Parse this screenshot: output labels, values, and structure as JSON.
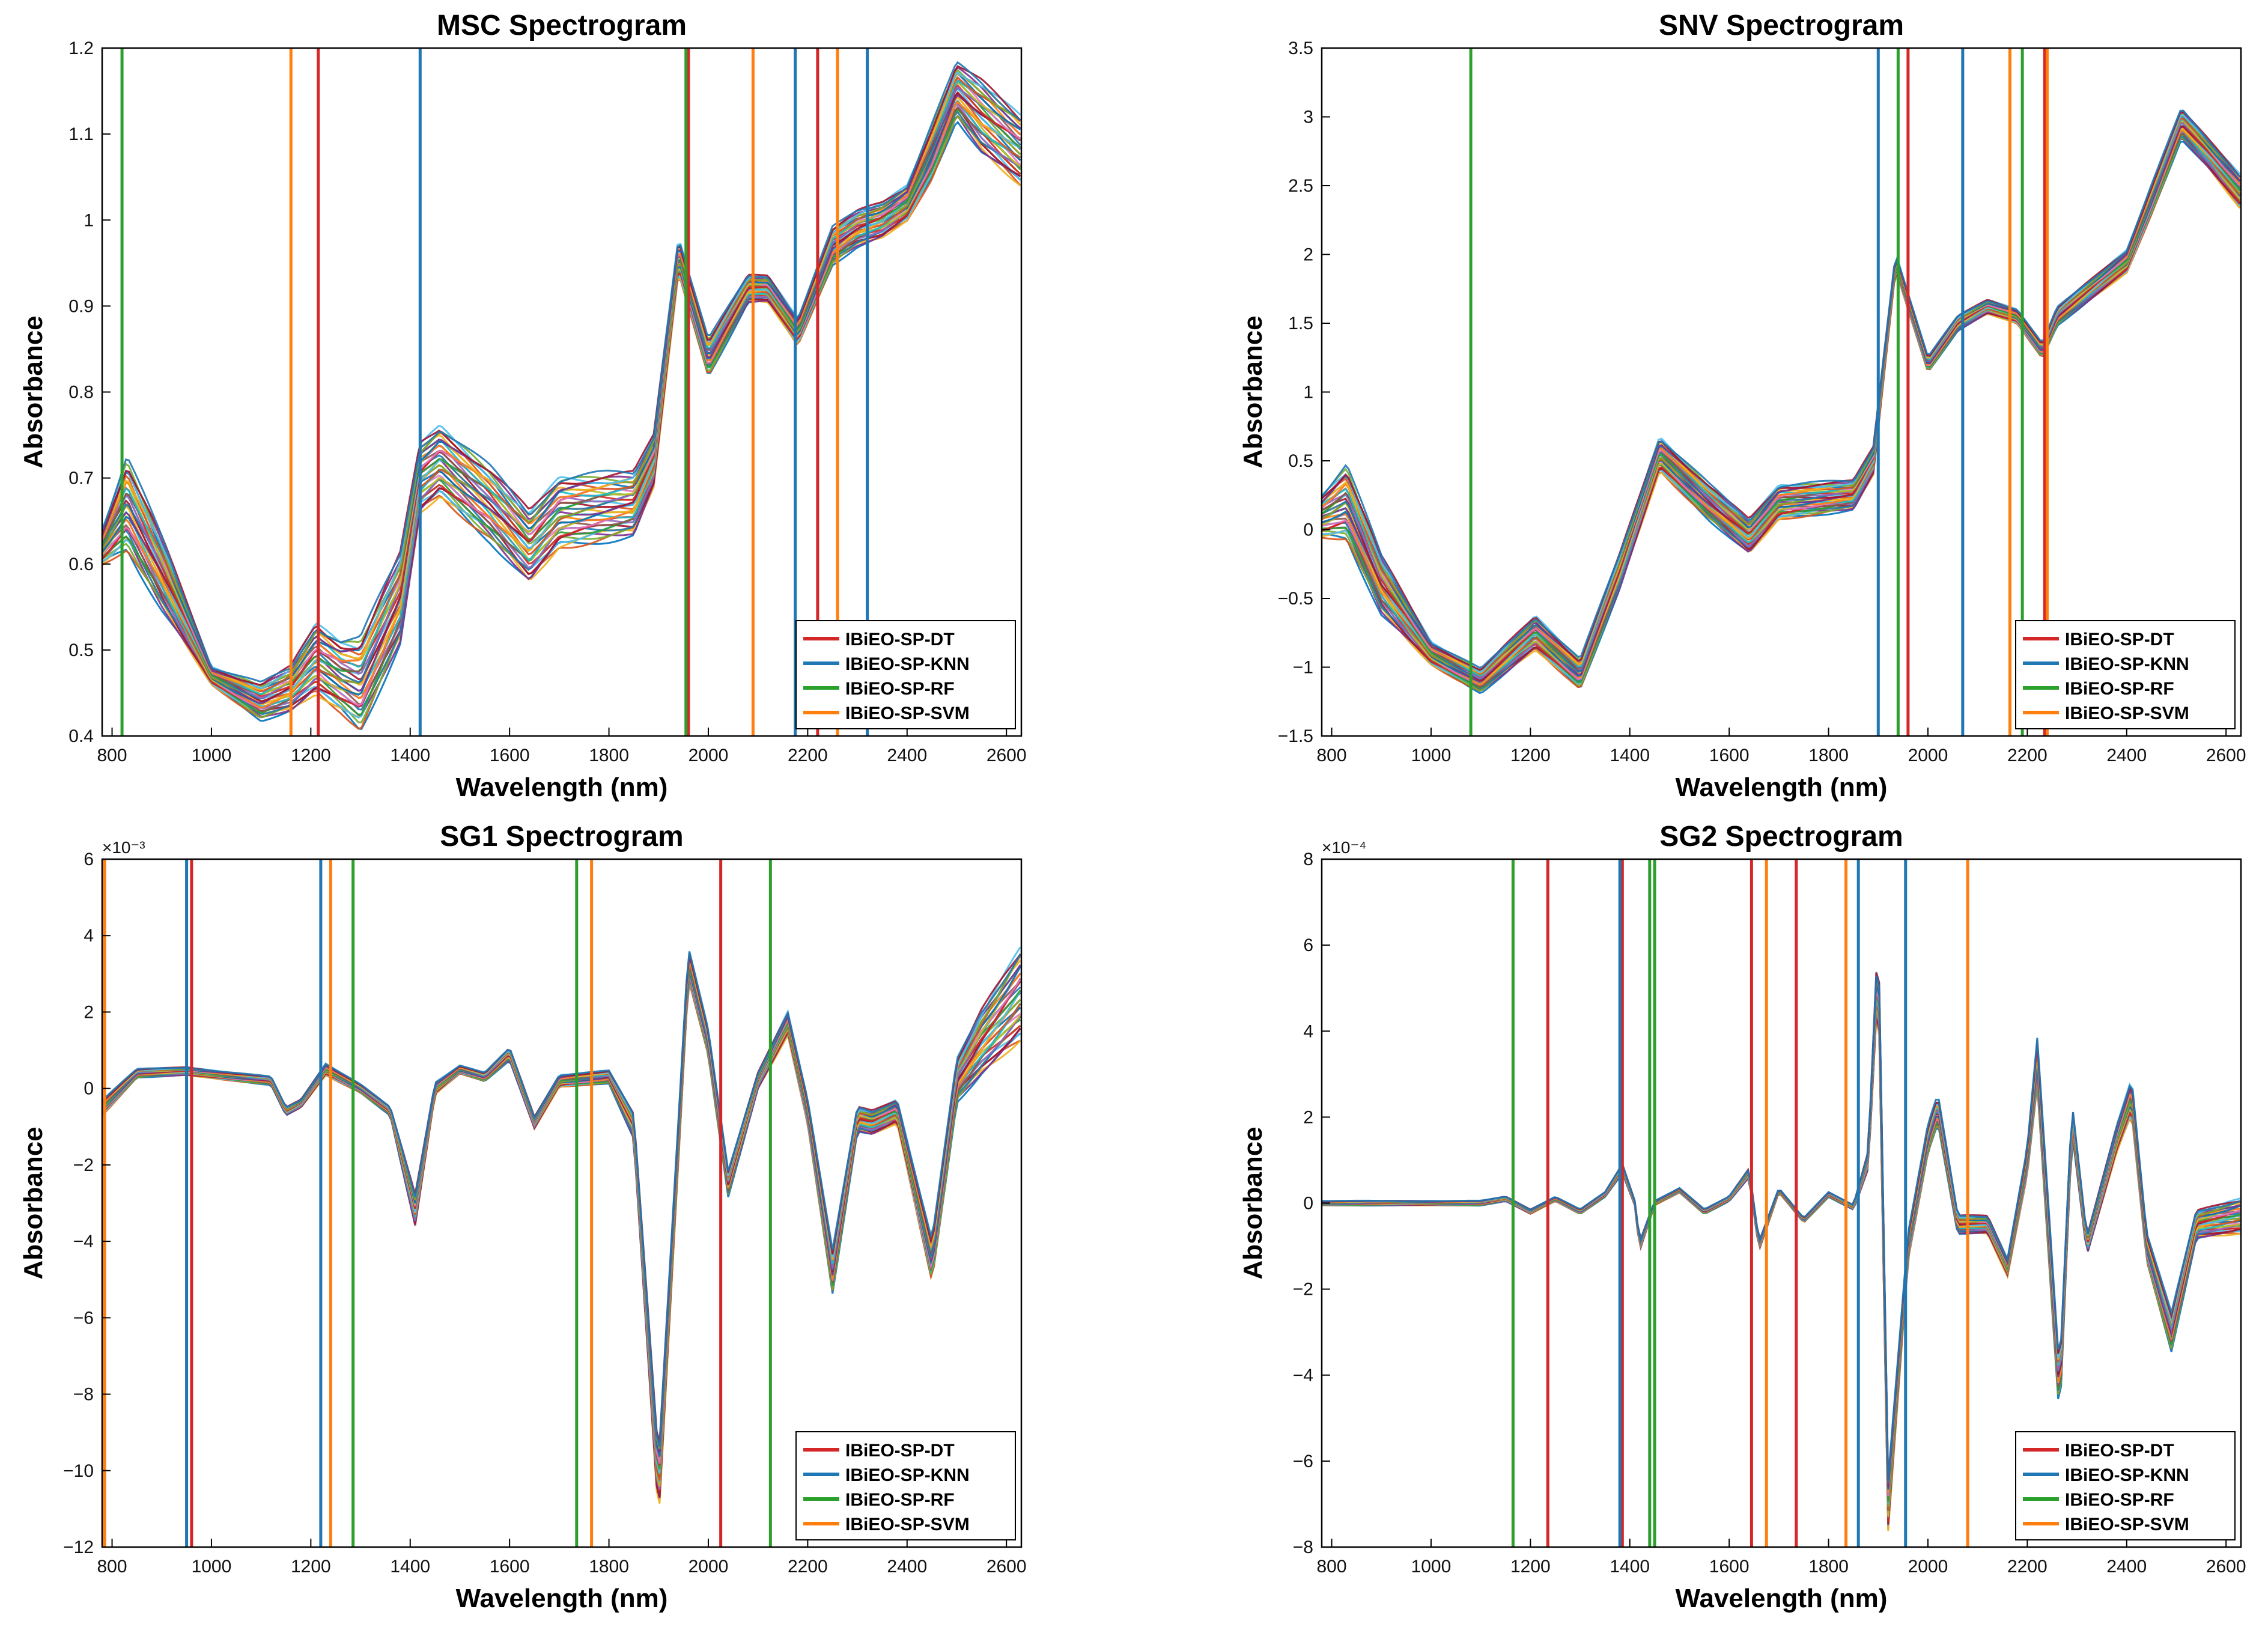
{
  "legend_entries": [
    {
      "name": "IBiEO-SP-DT",
      "color": "#d62728"
    },
    {
      "name": "IBiEO-SP-KNN",
      "color": "#1f77b4"
    },
    {
      "name": "IBiEO-SP-RF",
      "color": "#2ca02c"
    },
    {
      "name": "IBiEO-SP-SVM",
      "color": "#ff7f0e"
    }
  ],
  "chart_data": [
    {
      "id": "msc",
      "type": "line",
      "title": "MSC Spectrogram",
      "xlabel": "Wavelength (nm)",
      "ylabel": "Absorbance",
      "xlim": [
        780,
        2630
      ],
      "ylim": [
        0.4,
        1.2
      ],
      "xticks": [
        800,
        1000,
        1200,
        1400,
        1600,
        1800,
        2000,
        2200,
        2400,
        2600
      ],
      "yticks": [
        0.4,
        0.5,
        0.6,
        0.7,
        0.8,
        0.9,
        1,
        1.1,
        1.2
      ],
      "ytick_labels": [
        "0.4",
        "0.5",
        "0.6",
        "0.7",
        "0.8",
        "0.9",
        "1",
        "1.1",
        "1.2"
      ],
      "exponent_label": "",
      "legend_position": "bottom-right",
      "selected_wavelengths": {
        "IBiEO-SP-DT": [
          1215,
          1960,
          2220
        ],
        "IBiEO-SP-KNN": [
          1420,
          2175,
          2320
        ],
        "IBiEO-SP-RF": [
          820,
          1955
        ],
        "IBiEO-SP-SVM": [
          1160,
          2090,
          2260
        ]
      },
      "spectrum_profile": {
        "x": [
          780,
          830,
          900,
          1000,
          1100,
          1160,
          1210,
          1260,
          1300,
          1380,
          1420,
          1460,
          1560,
          1640,
          1700,
          1850,
          1890,
          1940,
          2000,
          2080,
          2120,
          2180,
          2250,
          2300,
          2350,
          2400,
          2450,
          2500,
          2550,
          2630
        ],
        "center": [
          0.62,
          0.67,
          0.59,
          0.47,
          0.44,
          0.455,
          0.49,
          0.47,
          0.46,
          0.56,
          0.7,
          0.72,
          0.67,
          0.62,
          0.66,
          0.67,
          0.72,
          0.96,
          0.84,
          0.92,
          0.92,
          0.87,
          0.97,
          0.99,
          1.0,
          1.02,
          1.08,
          1.15,
          1.12,
          1.08
        ],
        "spread": [
          0.02,
          0.05,
          0.04,
          0.01,
          0.02,
          0.025,
          0.04,
          0.04,
          0.05,
          0.05,
          0.04,
          0.04,
          0.04,
          0.04,
          0.04,
          0.035,
          0.03,
          0.02,
          0.02,
          0.015,
          0.015,
          0.015,
          0.02,
          0.02,
          0.02,
          0.02,
          0.03,
          0.03,
          0.04,
          0.04
        ]
      },
      "num_spectra": 40
    },
    {
      "id": "snv",
      "type": "line",
      "title": "SNV Spectrogram",
      "xlabel": "Wavelength (nm)",
      "ylabel": "Absorbance",
      "xlim": [
        780,
        2630
      ],
      "ylim": [
        -1.5,
        3.5
      ],
      "xticks": [
        800,
        1000,
        1200,
        1400,
        1600,
        1800,
        2000,
        2200,
        2400,
        2600
      ],
      "yticks": [
        -1.5,
        -1,
        -0.5,
        0,
        0.5,
        1,
        1.5,
        2,
        2.5,
        3,
        3.5
      ],
      "ytick_labels": [
        "−1.5",
        "−1",
        "−0.5",
        "0",
        "0.5",
        "1",
        "1.5",
        "2",
        "2.5",
        "3",
        "3.5"
      ],
      "exponent_label": "",
      "legend_position": "bottom-right",
      "selected_wavelengths": {
        "IBiEO-SP-DT": [
          1960,
          2235
        ],
        "IBiEO-SP-KNN": [
          1900,
          2070
        ],
        "IBiEO-SP-RF": [
          1080,
          1940,
          2190
        ],
        "IBiEO-SP-SVM": [
          2165,
          2240
        ]
      },
      "spectrum_profile": {
        "x": [
          780,
          830,
          900,
          1000,
          1100,
          1210,
          1300,
          1380,
          1460,
          1560,
          1640,
          1700,
          1850,
          1890,
          1935,
          2000,
          2060,
          2120,
          2180,
          2230,
          2260,
          2330,
          2400,
          2450,
          2510,
          2560,
          2630
        ],
        "center": [
          0.1,
          0.2,
          -0.4,
          -0.9,
          -1.1,
          -0.75,
          -1.05,
          -0.3,
          0.55,
          0.2,
          -0.05,
          0.2,
          0.25,
          0.5,
          1.95,
          1.2,
          1.5,
          1.62,
          1.55,
          1.3,
          1.55,
          1.75,
          1.95,
          2.4,
          2.95,
          2.75,
          2.45
        ],
        "spread": [
          0.15,
          0.25,
          0.2,
          0.08,
          0.08,
          0.12,
          0.1,
          0.12,
          0.12,
          0.12,
          0.12,
          0.12,
          0.1,
          0.1,
          0.06,
          0.05,
          0.05,
          0.05,
          0.05,
          0.05,
          0.06,
          0.07,
          0.08,
          0.1,
          0.1,
          0.1,
          0.12
        ]
      },
      "num_spectra": 40
    },
    {
      "id": "sg1",
      "type": "line",
      "title": "SG1 Spectrogram",
      "xlabel": "Wavelength (nm)",
      "ylabel": "Absorbance",
      "xlim": [
        780,
        2630
      ],
      "ylim": [
        -12,
        6
      ],
      "xticks": [
        800,
        1000,
        1200,
        1400,
        1600,
        1800,
        2000,
        2200,
        2400,
        2600
      ],
      "yticks": [
        -12,
        -10,
        -8,
        -6,
        -4,
        -2,
        0,
        2,
        4,
        6
      ],
      "ytick_labels": [
        "−12",
        "−10",
        "−8",
        "−6",
        "−4",
        "−2",
        "0",
        "2",
        "4",
        "6"
      ],
      "exponent_label": "×10⁻³",
      "legend_position": "bottom-right",
      "selected_wavelengths": {
        "IBiEO-SP-DT": [
          960,
          2025
        ],
        "IBiEO-SP-KNN": [
          950,
          1220
        ],
        "IBiEO-SP-RF": [
          1285,
          1735,
          2125
        ],
        "IBiEO-SP-SVM": [
          785,
          1240,
          1765
        ]
      },
      "spectrum_profile": {
        "x": [
          780,
          850,
          950,
          1050,
          1120,
          1150,
          1180,
          1230,
          1300,
          1360,
          1410,
          1450,
          1500,
          1550,
          1600,
          1650,
          1700,
          1800,
          1850,
          1900,
          1960,
          2000,
          2040,
          2100,
          2160,
          2200,
          2250,
          2300,
          2330,
          2380,
          2450,
          2500,
          2550,
          2630
        ],
        "center": [
          -0.5,
          0.4,
          0.45,
          0.3,
          0.2,
          -0.6,
          -0.4,
          0.5,
          0.0,
          -0.6,
          -3.2,
          0.0,
          0.5,
          0.3,
          0.9,
          -0.9,
          0.2,
          0.3,
          -1.0,
          -10.5,
          3.3,
          1.2,
          -2.5,
          0.2,
          1.7,
          -0.6,
          -4.8,
          -0.8,
          -0.9,
          -0.6,
          -4.5,
          0.2,
          1.2,
          2.5
        ],
        "spread": [
          0.2,
          0.1,
          0.1,
          0.1,
          0.1,
          0.1,
          0.1,
          0.15,
          0.1,
          0.1,
          0.4,
          0.15,
          0.1,
          0.1,
          0.15,
          0.15,
          0.15,
          0.15,
          0.3,
          0.8,
          0.4,
          0.3,
          0.3,
          0.2,
          0.3,
          0.3,
          0.5,
          0.3,
          0.3,
          0.3,
          0.5,
          0.5,
          0.8,
          1.2
        ]
      },
      "num_spectra": 40
    },
    {
      "id": "sg2",
      "type": "line",
      "title": "SG2 Spectrogram",
      "xlabel": "Wavelength (nm)",
      "ylabel": "Absorbance",
      "xlim": [
        780,
        2630
      ],
      "ylim": [
        -8,
        8
      ],
      "xticks": [
        800,
        1000,
        1200,
        1400,
        1600,
        1800,
        2000,
        2200,
        2400,
        2600
      ],
      "yticks": [
        -8,
        -6,
        -4,
        -2,
        0,
        2,
        4,
        6,
        8
      ],
      "ytick_labels": [
        "−8",
        "−6",
        "−4",
        "−2",
        "0",
        "2",
        "4",
        "6",
        "8"
      ],
      "exponent_label": "×10⁻⁴",
      "legend_position": "bottom-right",
      "selected_wavelengths": {
        "IBiEO-SP-DT": [
          1235,
          1385,
          1645,
          1735
        ],
        "IBiEO-SP-KNN": [
          1380,
          1860,
          1955
        ],
        "IBiEO-SP-RF": [
          1165,
          1440,
          1450
        ],
        "IBiEO-SP-SVM": [
          1675,
          1835,
          2080
        ]
      },
      "spectrum_profile": {
        "x": [
          780,
          1100,
          1150,
          1200,
          1250,
          1300,
          1350,
          1385,
          1410,
          1420,
          1450,
          1500,
          1550,
          1600,
          1640,
          1660,
          1700,
          1750,
          1800,
          1850,
          1880,
          1900,
          1920,
          1960,
          2000,
          2020,
          2060,
          2120,
          2160,
          2200,
          2220,
          2265,
          2290,
          2320,
          2380,
          2410,
          2440,
          2490,
          2540,
          2630
        ],
        "center": [
          0.0,
          0.0,
          0.1,
          -0.2,
          0.1,
          -0.2,
          0.2,
          0.8,
          0.0,
          -1.0,
          0.0,
          0.3,
          -0.2,
          0.1,
          0.7,
          -1.0,
          0.3,
          -0.4,
          0.2,
          -0.1,
          1.0,
          5.8,
          -7.0,
          -1.0,
          1.5,
          2.2,
          -0.5,
          -0.5,
          -1.5,
          1.0,
          3.3,
          -4.5,
          2.0,
          -1.0,
          1.5,
          2.5,
          -1.0,
          -3.0,
          -0.5,
          -0.3
        ],
        "spread": [
          0.05,
          0.05,
          0.05,
          0.05,
          0.05,
          0.05,
          0.05,
          0.1,
          0.05,
          0.1,
          0.05,
          0.05,
          0.05,
          0.05,
          0.1,
          0.1,
          0.05,
          0.05,
          0.05,
          0.05,
          0.2,
          0.6,
          0.6,
          0.3,
          0.3,
          0.3,
          0.2,
          0.2,
          0.2,
          0.3,
          0.5,
          0.5,
          0.3,
          0.2,
          0.3,
          0.4,
          0.3,
          0.4,
          0.3,
          0.4
        ]
      },
      "num_spectra": 40
    }
  ]
}
